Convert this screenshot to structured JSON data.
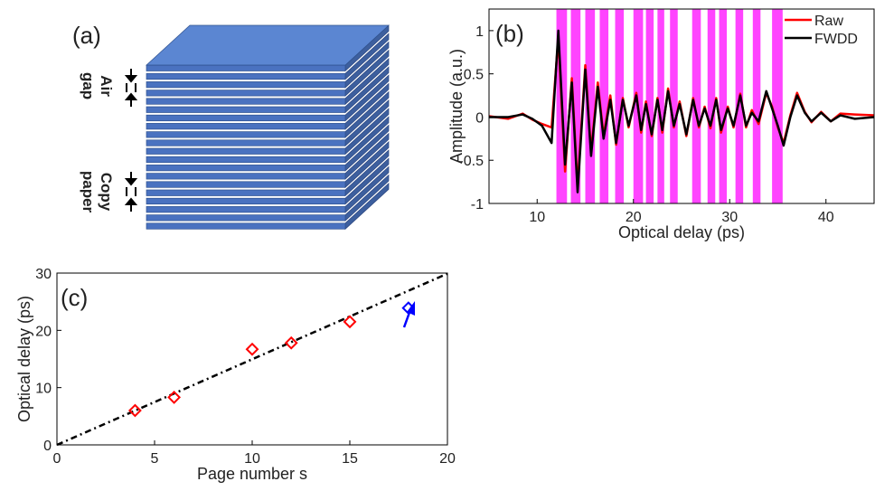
{
  "diagram": {
    "label": "(a)",
    "air_gap": [
      "Air",
      "gap"
    ],
    "copy_paper": [
      "Copy",
      "paper"
    ]
  },
  "chart_data": [
    {
      "type": "line",
      "label": "(b)",
      "xlabel": "Optical delay (ps)",
      "ylabel": "Amplitude (a.u.)",
      "xlim": [
        5,
        45
      ],
      "ylim": [
        -1,
        1.25
      ],
      "xticks": [
        10,
        20,
        30,
        40
      ],
      "yticks": [
        -1,
        -0.5,
        0,
        0.5,
        1
      ],
      "legend": "upper right",
      "bands": [
        [
          12.0,
          13.1
        ],
        [
          13.5,
          14.5
        ],
        [
          15.0,
          16.0
        ],
        [
          16.5,
          17.4
        ],
        [
          18.1,
          19.0
        ],
        [
          20.0,
          21.0
        ],
        [
          21.3,
          22.1
        ],
        [
          22.5,
          23.2
        ],
        [
          23.8,
          24.6
        ],
        [
          26.1,
          27.0
        ],
        [
          27.7,
          28.5
        ],
        [
          28.9,
          29.7
        ],
        [
          30.6,
          31.4
        ],
        [
          32.4,
          33.2
        ],
        [
          34.4,
          35.5
        ]
      ],
      "band_color": "#ff44ff",
      "x": [
        5,
        7,
        8.5,
        9.5,
        10.5,
        11.5,
        12.2,
        12.9,
        13.6,
        14.2,
        15,
        15.6,
        16.3,
        16.9,
        17.6,
        18.2,
        18.9,
        19.5,
        20.3,
        20.8,
        21.3,
        21.9,
        22.5,
        23,
        23.6,
        24.2,
        24.8,
        25.5,
        26.2,
        26.8,
        27.4,
        28,
        28.6,
        29.1,
        29.8,
        30.4,
        31.1,
        31.7,
        32.3,
        33,
        33.8,
        34.4,
        35,
        35.6,
        36.3,
        37,
        37.8,
        38.5,
        39.5,
        40.5,
        41.5,
        43,
        45
      ],
      "series": [
        {
          "name": "Raw",
          "color": "#ff0000",
          "values": [
            0.01,
            -0.02,
            0.04,
            -0.03,
            -0.08,
            -0.12,
            0.92,
            -0.63,
            0.45,
            -0.8,
            0.6,
            -0.4,
            0.4,
            -0.22,
            0.25,
            -0.32,
            0.22,
            -0.12,
            0.28,
            -0.18,
            0.18,
            -0.22,
            0.22,
            -0.18,
            0.33,
            -0.12,
            0.18,
            -0.22,
            0.22,
            -0.12,
            0.12,
            -0.13,
            0.22,
            -0.18,
            0.12,
            -0.12,
            0.27,
            -0.12,
            0.08,
            -0.08,
            0.28,
            0.12,
            -0.12,
            -0.3,
            0.02,
            0.28,
            0.06,
            -0.06,
            0.06,
            -0.05,
            0.04,
            0.03,
            0.02
          ]
        },
        {
          "name": "FWDD",
          "color": "#000000",
          "values": [
            0,
            0,
            0.03,
            -0.02,
            -0.1,
            -0.3,
            1.0,
            -0.55,
            0.4,
            -0.87,
            0.55,
            -0.45,
            0.35,
            -0.25,
            0.2,
            -0.3,
            0.2,
            -0.1,
            0.25,
            -0.15,
            0.15,
            -0.2,
            0.2,
            -0.15,
            0.3,
            -0.1,
            0.15,
            -0.2,
            0.2,
            -0.1,
            0.1,
            -0.1,
            0.2,
            -0.15,
            0.1,
            -0.1,
            0.25,
            -0.1,
            0.05,
            -0.05,
            0.3,
            0.1,
            -0.1,
            -0.33,
            0,
            0.25,
            0.05,
            -0.05,
            0.05,
            -0.05,
            0.02,
            -0.02,
            0
          ]
        }
      ]
    },
    {
      "type": "scatter",
      "label": "(c)",
      "xlabel": "Page number s",
      "ylabel": "Optical delay (ps)",
      "xlim": [
        0,
        20
      ],
      "ylim": [
        0,
        30
      ],
      "xticks": [
        0,
        5,
        10,
        15,
        20
      ],
      "yticks": [
        0,
        10,
        20,
        30
      ],
      "series": [
        {
          "color": "#ff0000",
          "x": [
            4,
            6,
            10,
            12,
            15
          ],
          "values": [
            6,
            8.3,
            16.7,
            17.8,
            21.5
          ]
        },
        {
          "color": "#0000ff",
          "x": [
            18
          ],
          "values": [
            23.9
          ]
        }
      ],
      "fit": {
        "color": "#000000",
        "x": [
          0,
          20
        ],
        "values": [
          0,
          29.9
        ]
      }
    }
  ]
}
